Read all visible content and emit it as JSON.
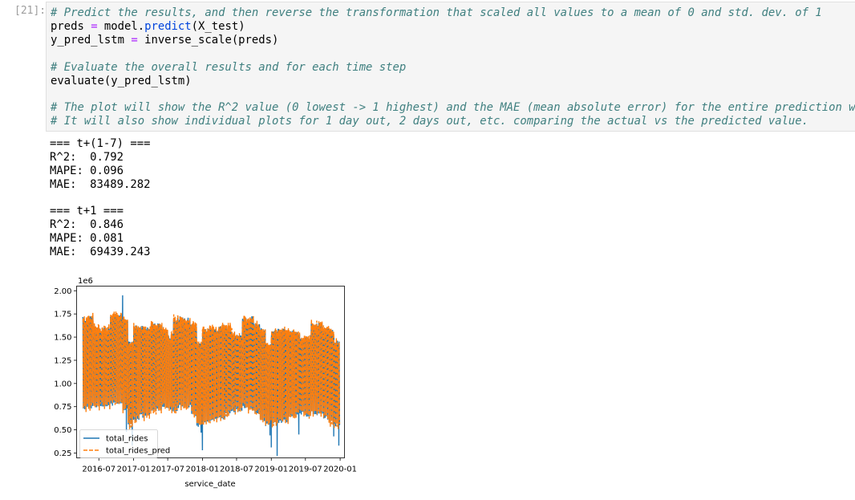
{
  "cell": {
    "prompt": "[21]:",
    "code_lines": [
      [
        {
          "t": "# Predict the results, and then reverse the transformation that scaled all values to a mean of 0 and std. dev. of 1",
          "c": "cm"
        }
      ],
      [
        {
          "t": "preds "
        },
        {
          "t": "=",
          "c": "op"
        },
        {
          "t": " model."
        },
        {
          "t": "predict",
          "c": "fn"
        },
        {
          "t": "(X_test)"
        }
      ],
      [
        {
          "t": "y_pred_lstm "
        },
        {
          "t": "=",
          "c": "op"
        },
        {
          "t": " inverse_scale(preds)"
        }
      ],
      [],
      [
        {
          "t": "# Evaluate the overall results and for each time step",
          "c": "cm"
        }
      ],
      [
        {
          "t": "evaluate(y_pred_lstm)"
        }
      ],
      [],
      [
        {
          "t": "# The plot will show the R^2 value (0 lowest -> 1 highest) and the MAE (mean absolute error) for the entire prediction window.",
          "c": "cm"
        }
      ],
      [
        {
          "t": "# It will also show individual plots for 1 day out, 2 days out, etc. comparing the actual vs the predicted value.",
          "c": "cm"
        }
      ]
    ]
  },
  "output": {
    "lines": [
      "=== t+(1-7) ===",
      "R^2:  0.792",
      "MAPE: 0.096",
      "MAE:  83489.282",
      "",
      "=== t+1 ===",
      "R^2:  0.846",
      "MAPE: 0.081",
      "MAE:  69439.243"
    ]
  },
  "chart_data": {
    "type": "line",
    "xlabel": "service_date",
    "ylabel": "",
    "y_offset_label": "1e6",
    "xlim": [
      "2016-03-05",
      "2020-01-24"
    ],
    "ylim": [
      0.198,
      2.05
    ],
    "y_ticks": [
      "0.25",
      "0.50",
      "0.75",
      "1.00",
      "1.25",
      "1.50",
      "1.75",
      "2.00"
    ],
    "x_ticks": [
      "2016-07",
      "2017-01",
      "2017-07",
      "2018-01",
      "2018-07",
      "2019-01",
      "2019-07",
      "2020-01"
    ],
    "grid": false,
    "legend_placement": "lower left",
    "date_range": [
      "2016-04-07",
      "2019-12-29"
    ],
    "note_values_in_millions": true,
    "months": [
      "2016-04",
      "2016-05",
      "2016-06",
      "2016-07",
      "2016-08",
      "2016-09",
      "2016-10",
      "2016-11",
      "2016-12",
      "2017-01",
      "2017-02",
      "2017-03",
      "2017-04",
      "2017-05",
      "2017-06",
      "2017-07",
      "2017-08",
      "2017-09",
      "2017-10",
      "2017-11",
      "2017-12",
      "2018-01",
      "2018-02",
      "2018-03",
      "2018-04",
      "2018-05",
      "2018-06",
      "2018-07",
      "2018-08",
      "2018-09",
      "2018-10",
      "2018-11",
      "2018-12",
      "2019-01",
      "2019-02",
      "2019-03",
      "2019-04",
      "2019-05",
      "2019-06",
      "2019-07",
      "2019-08",
      "2019-09",
      "2019-10",
      "2019-11",
      "2019-12"
    ],
    "weekday_level": [
      1.7,
      1.72,
      1.62,
      1.6,
      1.6,
      1.75,
      1.75,
      1.7,
      1.45,
      1.62,
      1.62,
      1.62,
      1.65,
      1.65,
      1.58,
      1.52,
      1.7,
      1.72,
      1.7,
      1.65,
      1.45,
      1.58,
      1.6,
      1.6,
      1.62,
      1.62,
      1.55,
      1.52,
      1.7,
      1.73,
      1.65,
      1.6,
      1.42,
      1.58,
      1.58,
      1.58,
      1.58,
      1.55,
      1.5,
      1.5,
      1.65,
      1.66,
      1.6,
      1.58,
      1.45
    ],
    "weekend_level": [
      0.72,
      0.75,
      0.76,
      0.74,
      0.75,
      0.78,
      0.78,
      0.72,
      0.55,
      0.6,
      0.65,
      0.66,
      0.7,
      0.72,
      0.75,
      0.72,
      0.72,
      0.75,
      0.75,
      0.66,
      0.55,
      0.58,
      0.6,
      0.62,
      0.63,
      0.66,
      0.7,
      0.72,
      0.75,
      0.72,
      0.68,
      0.6,
      0.55,
      0.57,
      0.58,
      0.6,
      0.63,
      0.65,
      0.68,
      0.66,
      0.68,
      0.66,
      0.63,
      0.58,
      0.55
    ],
    "actual_outliers": [
      {
        "date": "2016-11-04",
        "value": 1.95
      },
      {
        "date": "2016-11-24",
        "value": 0.48
      },
      {
        "date": "2016-12-25",
        "value": 0.33
      },
      {
        "date": "2017-12-25",
        "value": 0.47
      },
      {
        "date": "2018-01-01",
        "value": 0.28
      },
      {
        "date": "2018-12-25",
        "value": 0.44
      },
      {
        "date": "2019-01-01",
        "value": 0.31
      },
      {
        "date": "2019-02-01",
        "value": 0.22
      },
      {
        "date": "2019-05-27",
        "value": 0.45
      },
      {
        "date": "2019-11-28",
        "value": 0.43
      },
      {
        "date": "2019-12-25",
        "value": 0.33
      }
    ],
    "series": [
      {
        "name": "total_rides",
        "color": "#1f77b4",
        "style": "solid"
      },
      {
        "name": "total_rides_pred",
        "color": "#ff7f0e",
        "style": "dashed"
      }
    ]
  }
}
